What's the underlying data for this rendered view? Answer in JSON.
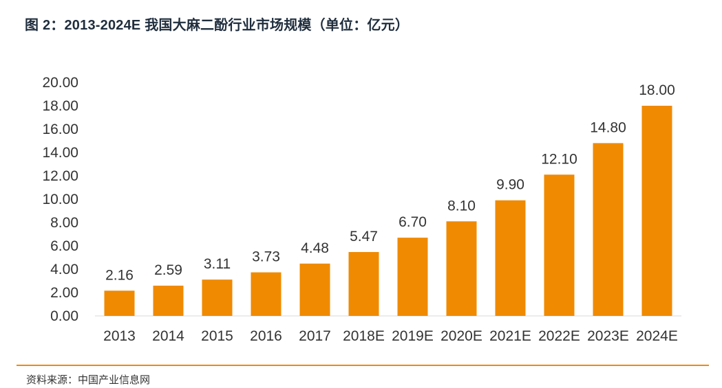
{
  "title": "图 2：2013-2024E 我国大麻二酚行业市场规模（单位：亿元）",
  "source": "资料来源：中国产业信息网",
  "colors": {
    "bar": "#f08a00",
    "accent_line": "#f08a00",
    "axis_text": "#333333",
    "axis_line": "#d9d9d9"
  },
  "chart_data": {
    "type": "bar",
    "title": "图 2：2013-2024E 我国大麻二酚行业市场规模（单位：亿元）",
    "xlabel": "",
    "ylabel": "",
    "ylim": [
      0,
      20
    ],
    "y_ticks": [
      "0.00",
      "2.00",
      "4.00",
      "6.00",
      "8.00",
      "10.00",
      "12.00",
      "14.00",
      "16.00",
      "18.00",
      "20.00"
    ],
    "grid": false,
    "categories": [
      "2013",
      "2014",
      "2015",
      "2016",
      "2017",
      "2018E",
      "2019E",
      "2020E",
      "2021E",
      "2022E",
      "2023E",
      "2024E"
    ],
    "values": [
      2.16,
      2.59,
      3.11,
      3.73,
      4.48,
      5.47,
      6.7,
      8.1,
      9.9,
      12.1,
      14.8,
      18.0
    ],
    "data_labels": [
      "2.16",
      "2.59",
      "3.11",
      "3.73",
      "4.48",
      "5.47",
      "6.70",
      "8.10",
      "9.90",
      "12.10",
      "14.80",
      "18.00"
    ]
  }
}
